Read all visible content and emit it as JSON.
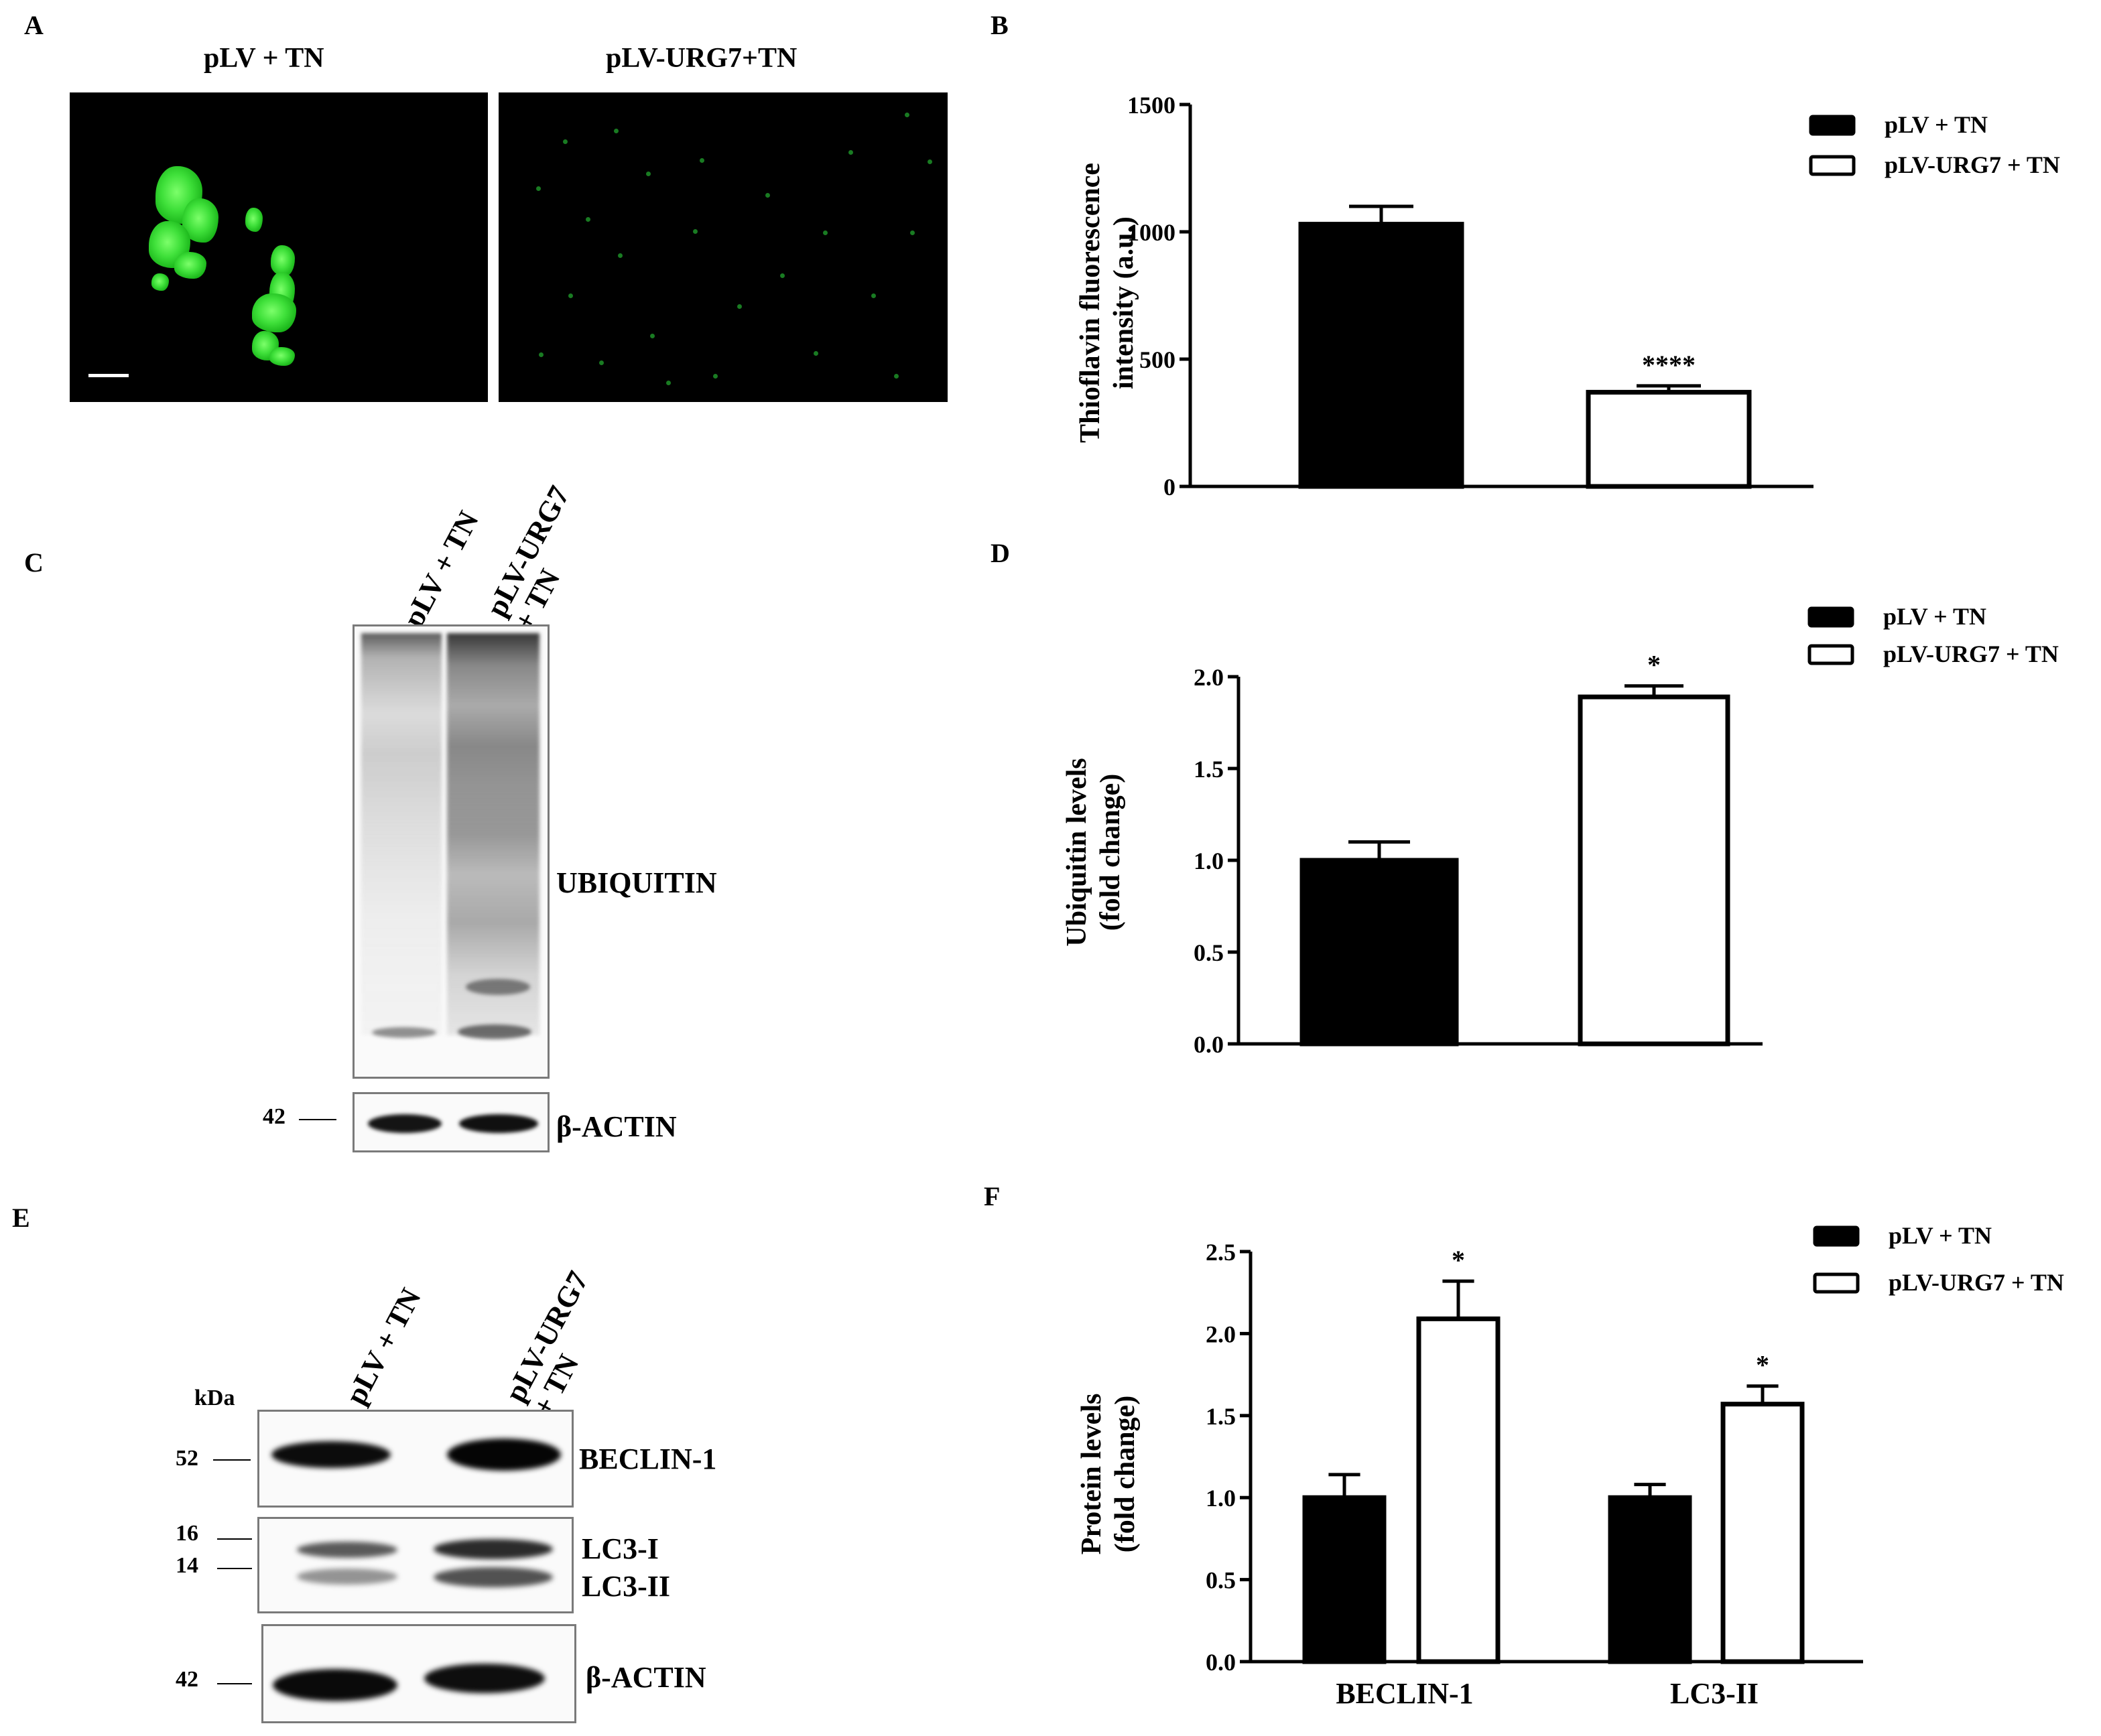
{
  "panels": {
    "A": {
      "letter": "A",
      "title_left": "pLV  + TN",
      "title_right": "pLV-URG7+TN"
    },
    "B": {
      "letter": "B"
    },
    "C": {
      "letter": "C",
      "lanes": [
        "pLV + TN",
        "pLV-URG7\n+ TN"
      ],
      "band_labels": {
        "ubiquitin": "UBIQUITIN",
        "actin": "β-ACTIN"
      },
      "markers": {
        "actin": "42"
      }
    },
    "D": {
      "letter": "D"
    },
    "E": {
      "letter": "E",
      "lanes": [
        "pLV + TN",
        "pLV-URG7\n+ TN"
      ],
      "kda": "kDa",
      "band_labels": {
        "beclin": "BECLIN-1",
        "lc3i": "LC3-I",
        "lc3ii": "LC3-II",
        "actin": "β-ACTIN"
      },
      "markers": {
        "beclin": "52",
        "lc3i": "16",
        "lc3ii": "14",
        "actin": "42"
      }
    },
    "F": {
      "letter": "F"
    }
  },
  "colors": {
    "black_bar": "#000000",
    "white_bar": "#ffffff",
    "fluorescence": "#33d933"
  },
  "chart_data": [
    {
      "id": "B",
      "type": "bar",
      "categories": [
        "pLV + TN",
        "pLV-URG7 + TN"
      ],
      "series": [
        {
          "values": [
            1030,
            370
          ],
          "errors": [
            70,
            25
          ]
        }
      ],
      "significance": [
        "",
        "****"
      ],
      "fills": [
        "#000000",
        "#ffffff"
      ],
      "ylabel": "Thioflavin fluorescence\nintensity (a.u.)",
      "ylim": [
        0,
        1500
      ],
      "yticks": [
        0,
        500,
        1000,
        1500
      ],
      "ytick_labels": [
        "0",
        "500",
        "1000",
        "1500"
      ],
      "legend": [
        "pLV + TN",
        "pLV-URG7 + TN"
      ],
      "legend_position": "top-right"
    },
    {
      "id": "D",
      "type": "bar",
      "categories": [
        "pLV + TN",
        "pLV-URG7 + TN"
      ],
      "series": [
        {
          "values": [
            1.0,
            1.89
          ],
          "errors": [
            0.1,
            0.06
          ]
        }
      ],
      "significance": [
        "",
        "*"
      ],
      "fills": [
        "#000000",
        "#ffffff"
      ],
      "ylabel": "Ubiquitin levels\n(fold change)",
      "ylim": [
        0,
        2.0
      ],
      "yticks": [
        0,
        0.5,
        1.0,
        1.5,
        2.0
      ],
      "ytick_labels": [
        "0.0",
        "0.5",
        "1.0",
        "1.5",
        "2.0"
      ],
      "legend": [
        "pLV + TN",
        "pLV-URG7 + TN"
      ],
      "legend_position": "top-right"
    },
    {
      "id": "F",
      "type": "bar",
      "categories": [
        "BECLIN-1",
        "LC3-II"
      ],
      "series": [
        {
          "name": "pLV + TN",
          "values": [
            1.0,
            1.0
          ],
          "errors": [
            0.14,
            0.08
          ],
          "fill": "#000000"
        },
        {
          "name": "pLV-URG7 + TN",
          "values": [
            2.09,
            1.57
          ],
          "errors": [
            0.23,
            0.11
          ],
          "fill": "#ffffff"
        }
      ],
      "significance": [
        [
          "",
          "*"
        ],
        [
          "",
          "*"
        ]
      ],
      "ylabel": "Protein  levels\n(fold change)",
      "ylim": [
        0,
        2.5
      ],
      "yticks": [
        0,
        0.5,
        1.0,
        1.5,
        2.0,
        2.5
      ],
      "ytick_labels": [
        "0.0",
        "0.5",
        "1.0",
        "1.5",
        "2.0",
        "2.5"
      ],
      "legend": [
        "pLV + TN",
        "pLV-URG7 + TN"
      ],
      "legend_position": "top-right"
    }
  ]
}
